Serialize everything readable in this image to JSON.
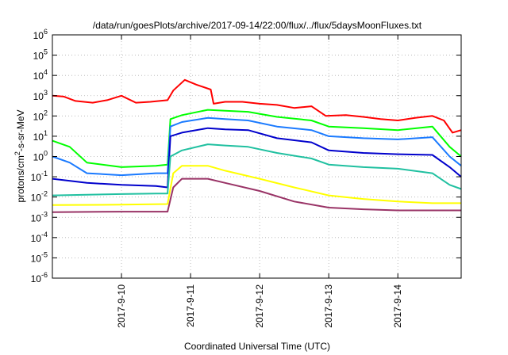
{
  "chart_data": {
    "type": "line",
    "title": "/data/run/goesPlots/archive/2017-09-14/22:00/flux/../flux/5daysMoonFluxes.txt",
    "xlabel": "Coordinated Universal Time (UTC)",
    "ylabel": "protons/cm2-s-sr-MeV",
    "yscale": "log",
    "ylim": [
      1e-06,
      1000000.0
    ],
    "xlim": [
      "2017-09-09T00:00",
      "2017-09-14T22:00"
    ],
    "grid": true,
    "legend": "none",
    "x_ticks": [
      "2017-9-10",
      "2017-9-11",
      "2017-9-12",
      "2017-9-13",
      "2017-9-14"
    ],
    "x_tick_dates": [
      "2017-09-10",
      "2017-09-11",
      "2017-09-12",
      "2017-09-13",
      "2017-09-14"
    ],
    "y_ticks": [
      {
        "base": "10",
        "exp": "-6"
      },
      {
        "base": "10",
        "exp": "-5"
      },
      {
        "base": "10",
        "exp": "-4"
      },
      {
        "base": "10",
        "exp": "-3"
      },
      {
        "base": "10",
        "exp": "-2"
      },
      {
        "base": "10",
        "exp": "-1"
      },
      {
        "base": "10",
        "exp": "0"
      },
      {
        "base": "10",
        "exp": "1"
      },
      {
        "base": "10",
        "exp": "2"
      },
      {
        "base": "10",
        "exp": "3"
      },
      {
        "base": "10",
        "exp": "4"
      },
      {
        "base": "10",
        "exp": "5"
      },
      {
        "base": "10",
        "exp": "6"
      }
    ],
    "series": [
      {
        "color": "#ff0000",
        "x": [
          "2017-09-09T00:00",
          "2017-09-09T04:00",
          "2017-09-09T08:00",
          "2017-09-09T14:00",
          "2017-09-09T19:00",
          "2017-09-10T00:00",
          "2017-09-10T05:00",
          "2017-09-10T10:00",
          "2017-09-10T16:00",
          "2017-09-10T18:00",
          "2017-09-10T22:00",
          "2017-09-11T02:00",
          "2017-09-11T07:00",
          "2017-09-11T08:00",
          "2017-09-11T12:00",
          "2017-09-11T18:00",
          "2017-09-12T00:00",
          "2017-09-12T06:00",
          "2017-09-12T12:00",
          "2017-09-12T18:00",
          "2017-09-12T23:00",
          "2017-09-13T06:00",
          "2017-09-13T12:00",
          "2017-09-13T18:00",
          "2017-09-14T00:00",
          "2017-09-14T06:00",
          "2017-09-14T12:00",
          "2017-09-14T16:00",
          "2017-09-14T19:00",
          "2017-09-14T22:00"
        ],
        "values": [
          1000,
          900,
          550,
          450,
          600,
          1000,
          450,
          500,
          600,
          1800,
          6000,
          3500,
          2000,
          400,
          500,
          500,
          400,
          350,
          250,
          300,
          100,
          110,
          90,
          70,
          60,
          80,
          100,
          60,
          15,
          20
        ]
      },
      {
        "color": "#00ff00",
        "x": [
          "2017-09-09T00:00",
          "2017-09-09T06:00",
          "2017-09-09T12:00",
          "2017-09-10T00:00",
          "2017-09-10T12:00",
          "2017-09-10T16:00",
          "2017-09-10T17:00",
          "2017-09-10T21:00",
          "2017-09-11T06:00",
          "2017-09-11T12:00",
          "2017-09-11T20:00",
          "2017-09-12T06:00",
          "2017-09-12T18:00",
          "2017-09-13T00:00",
          "2017-09-13T12:00",
          "2017-09-14T00:00",
          "2017-09-14T12:00",
          "2017-09-14T18:00",
          "2017-09-14T22:00"
        ],
        "values": [
          6,
          3,
          0.5,
          0.3,
          0.35,
          0.4,
          70,
          110,
          200,
          180,
          160,
          90,
          60,
          30,
          25,
          20,
          30,
          3,
          1
        ]
      },
      {
        "color": "#1a7aff",
        "x": [
          "2017-09-09T00:00",
          "2017-09-09T06:00",
          "2017-09-09T12:00",
          "2017-09-10T00:00",
          "2017-09-10T12:00",
          "2017-09-10T16:00",
          "2017-09-10T17:00",
          "2017-09-10T21:00",
          "2017-09-11T06:00",
          "2017-09-11T12:00",
          "2017-09-11T20:00",
          "2017-09-12T06:00",
          "2017-09-12T18:00",
          "2017-09-13T00:00",
          "2017-09-13T12:00",
          "2017-09-14T00:00",
          "2017-09-14T12:00",
          "2017-09-14T18:00",
          "2017-09-14T22:00"
        ],
        "values": [
          1,
          0.5,
          0.15,
          0.12,
          0.15,
          0.15,
          30,
          50,
          80,
          70,
          60,
          30,
          20,
          10,
          8,
          7,
          9,
          1,
          0.35
        ]
      },
      {
        "color": "#0000cc",
        "x": [
          "2017-09-09T00:00",
          "2017-09-09T12:00",
          "2017-09-10T00:00",
          "2017-09-10T12:00",
          "2017-09-10T16:00",
          "2017-09-10T17:00",
          "2017-09-10T21:00",
          "2017-09-11T06:00",
          "2017-09-11T12:00",
          "2017-09-11T20:00",
          "2017-09-12T06:00",
          "2017-09-12T18:00",
          "2017-09-13T00:00",
          "2017-09-13T12:00",
          "2017-09-14T00:00",
          "2017-09-14T12:00",
          "2017-09-14T18:00",
          "2017-09-14T22:00"
        ],
        "values": [
          0.08,
          0.05,
          0.04,
          0.035,
          0.03,
          10,
          15,
          25,
          22,
          20,
          8,
          5,
          2,
          1.5,
          1.3,
          1.2,
          0.3,
          0.1
        ]
      },
      {
        "color": "#20c0a0",
        "x": [
          "2017-09-09T00:00",
          "2017-09-10T00:00",
          "2017-09-10T12:00",
          "2017-09-10T16:00",
          "2017-09-10T17:00",
          "2017-09-10T21:00",
          "2017-09-11T06:00",
          "2017-09-11T12:00",
          "2017-09-11T20:00",
          "2017-09-12T06:00",
          "2017-09-12T18:00",
          "2017-09-13T00:00",
          "2017-09-13T12:00",
          "2017-09-14T00:00",
          "2017-09-14T12:00",
          "2017-09-14T18:00",
          "2017-09-14T22:00"
        ],
        "values": [
          0.012,
          0.014,
          0.015,
          0.015,
          1,
          2,
          4,
          3.5,
          3,
          1.5,
          0.8,
          0.4,
          0.3,
          0.25,
          0.15,
          0.04,
          0.025
        ]
      },
      {
        "color": "#ffff00",
        "x": [
          "2017-09-09T00:00",
          "2017-09-10T00:00",
          "2017-09-10T16:00",
          "2017-09-10T18:00",
          "2017-09-10T21:00",
          "2017-09-11T06:00",
          "2017-09-11T12:00",
          "2017-09-12T00:00",
          "2017-09-12T12:00",
          "2017-09-13T00:00",
          "2017-09-13T12:00",
          "2017-09-14T00:00",
          "2017-09-14T12:00",
          "2017-09-14T22:00"
        ],
        "values": [
          0.004,
          0.0042,
          0.0045,
          0.15,
          0.35,
          0.35,
          0.2,
          0.08,
          0.03,
          0.012,
          0.008,
          0.006,
          0.005,
          0.005
        ]
      },
      {
        "color": "#993366",
        "x": [
          "2017-09-09T00:00",
          "2017-09-10T00:00",
          "2017-09-10T16:00",
          "2017-09-10T18:00",
          "2017-09-10T21:00",
          "2017-09-11T06:00",
          "2017-09-11T12:00",
          "2017-09-12T00:00",
          "2017-09-12T12:00",
          "2017-09-13T00:00",
          "2017-09-13T12:00",
          "2017-09-14T00:00",
          "2017-09-14T12:00",
          "2017-09-14T22:00"
        ],
        "values": [
          0.0018,
          0.0019,
          0.0019,
          0.03,
          0.08,
          0.08,
          0.05,
          0.02,
          0.006,
          0.003,
          0.0025,
          0.0022,
          0.0022,
          0.0022
        ]
      }
    ]
  }
}
